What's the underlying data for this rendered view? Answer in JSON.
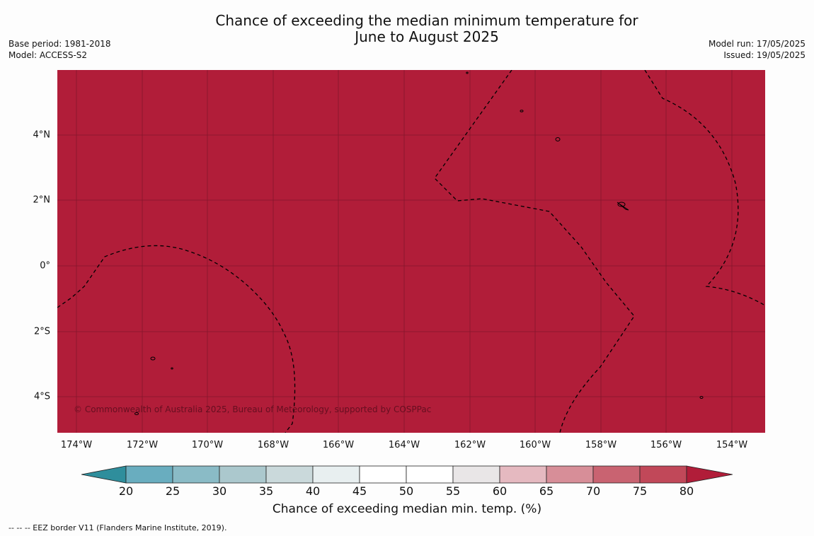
{
  "title_line1": "Chance of exceeding the median minimum temperature for",
  "title_line2": "June to August 2025",
  "meta_left": {
    "base_period": "Base period: 1981-2018",
    "model": "Model: ACCESS-S2"
  },
  "meta_right": {
    "model_run": "Model run: 17/05/2025",
    "issued": "Issued: 19/05/2025"
  },
  "map": {
    "fill_color": "#b11d39",
    "copyright": "© Commonwealth of Australia 2025, Bureau of Meteorology, supported by COSPPac",
    "x_ticks": [
      "174°W",
      "172°W",
      "170°W",
      "168°W",
      "166°W",
      "164°W",
      "162°W",
      "160°W",
      "158°W",
      "156°W",
      "154°W"
    ],
    "y_ticks": [
      "4°N",
      "2°N",
      "0°",
      "2°S",
      "4°S"
    ]
  },
  "colorbar": {
    "title": "Chance of exceeding median min. temp. (%)",
    "labels": [
      "20",
      "25",
      "30",
      "35",
      "40",
      "45",
      "50",
      "55",
      "60",
      "65",
      "70",
      "75",
      "80"
    ],
    "colors": [
      "#2f8e9c",
      "#69adbf",
      "#8abbc6",
      "#abc8cd",
      "#cad9db",
      "#e8eff0",
      "#ffffff",
      "#ffffff",
      "#e9e6e7",
      "#e5b9c0",
      "#d78e98",
      "#c96371",
      "#c14859",
      "#b11d39"
    ]
  },
  "footnote": "--  --  -- EEZ border V11 (Flanders Marine Institute, 2019)."
}
